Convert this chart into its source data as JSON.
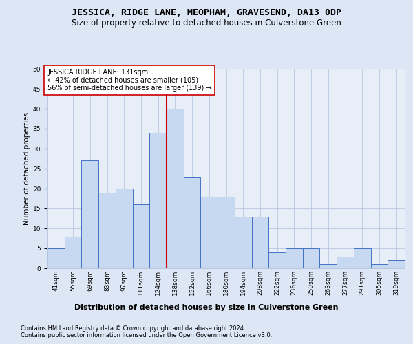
{
  "title": "JESSICA, RIDGE LANE, MEOPHAM, GRAVESEND, DA13 0DP",
  "subtitle": "Size of property relative to detached houses in Culverstone Green",
  "xlabel": "Distribution of detached houses by size in Culverstone Green",
  "ylabel": "Number of detached properties",
  "footnote1": "Contains HM Land Registry data © Crown copyright and database right 2024.",
  "footnote2": "Contains public sector information licensed under the Open Government Licence v3.0.",
  "annotation_line1": "JESSICA RIDGE LANE: 131sqm",
  "annotation_line2": "← 42% of detached houses are smaller (105)",
  "annotation_line3": "56% of semi-detached houses are larger (139) →",
  "bin_labels": [
    "41sqm",
    "55sqm",
    "69sqm",
    "83sqm",
    "97sqm",
    "111sqm",
    "124sqm",
    "138sqm",
    "152sqm",
    "166sqm",
    "180sqm",
    "194sqm",
    "208sqm",
    "222sqm",
    "236sqm",
    "250sqm",
    "263sqm",
    "277sqm",
    "291sqm",
    "305sqm",
    "319sqm"
  ],
  "bar_heights": [
    5,
    8,
    27,
    19,
    20,
    16,
    34,
    40,
    23,
    18,
    18,
    13,
    13,
    4,
    5,
    5,
    1,
    3,
    5,
    1,
    2
  ],
  "bar_color": "#c6d9f0",
  "bar_edge_color": "#4472c4",
  "vline_color": "#cc0000",
  "vline_x": 6.5,
  "ylim": [
    0,
    50
  ],
  "yticks": [
    0,
    5,
    10,
    15,
    20,
    25,
    30,
    35,
    40,
    45,
    50
  ],
  "bg_color": "#dce6f5",
  "plot_bg_color": "#e8eef8",
  "grid_color": "#b8c8e0",
  "annotation_box_facecolor": "#ffffff",
  "annotation_box_edgecolor": "#cc0000",
  "title_fontsize": 9.5,
  "subtitle_fontsize": 8.5,
  "xlabel_fontsize": 8,
  "ylabel_fontsize": 7.5,
  "tick_fontsize": 6.5,
  "annotation_fontsize": 7,
  "footnote_fontsize": 6
}
